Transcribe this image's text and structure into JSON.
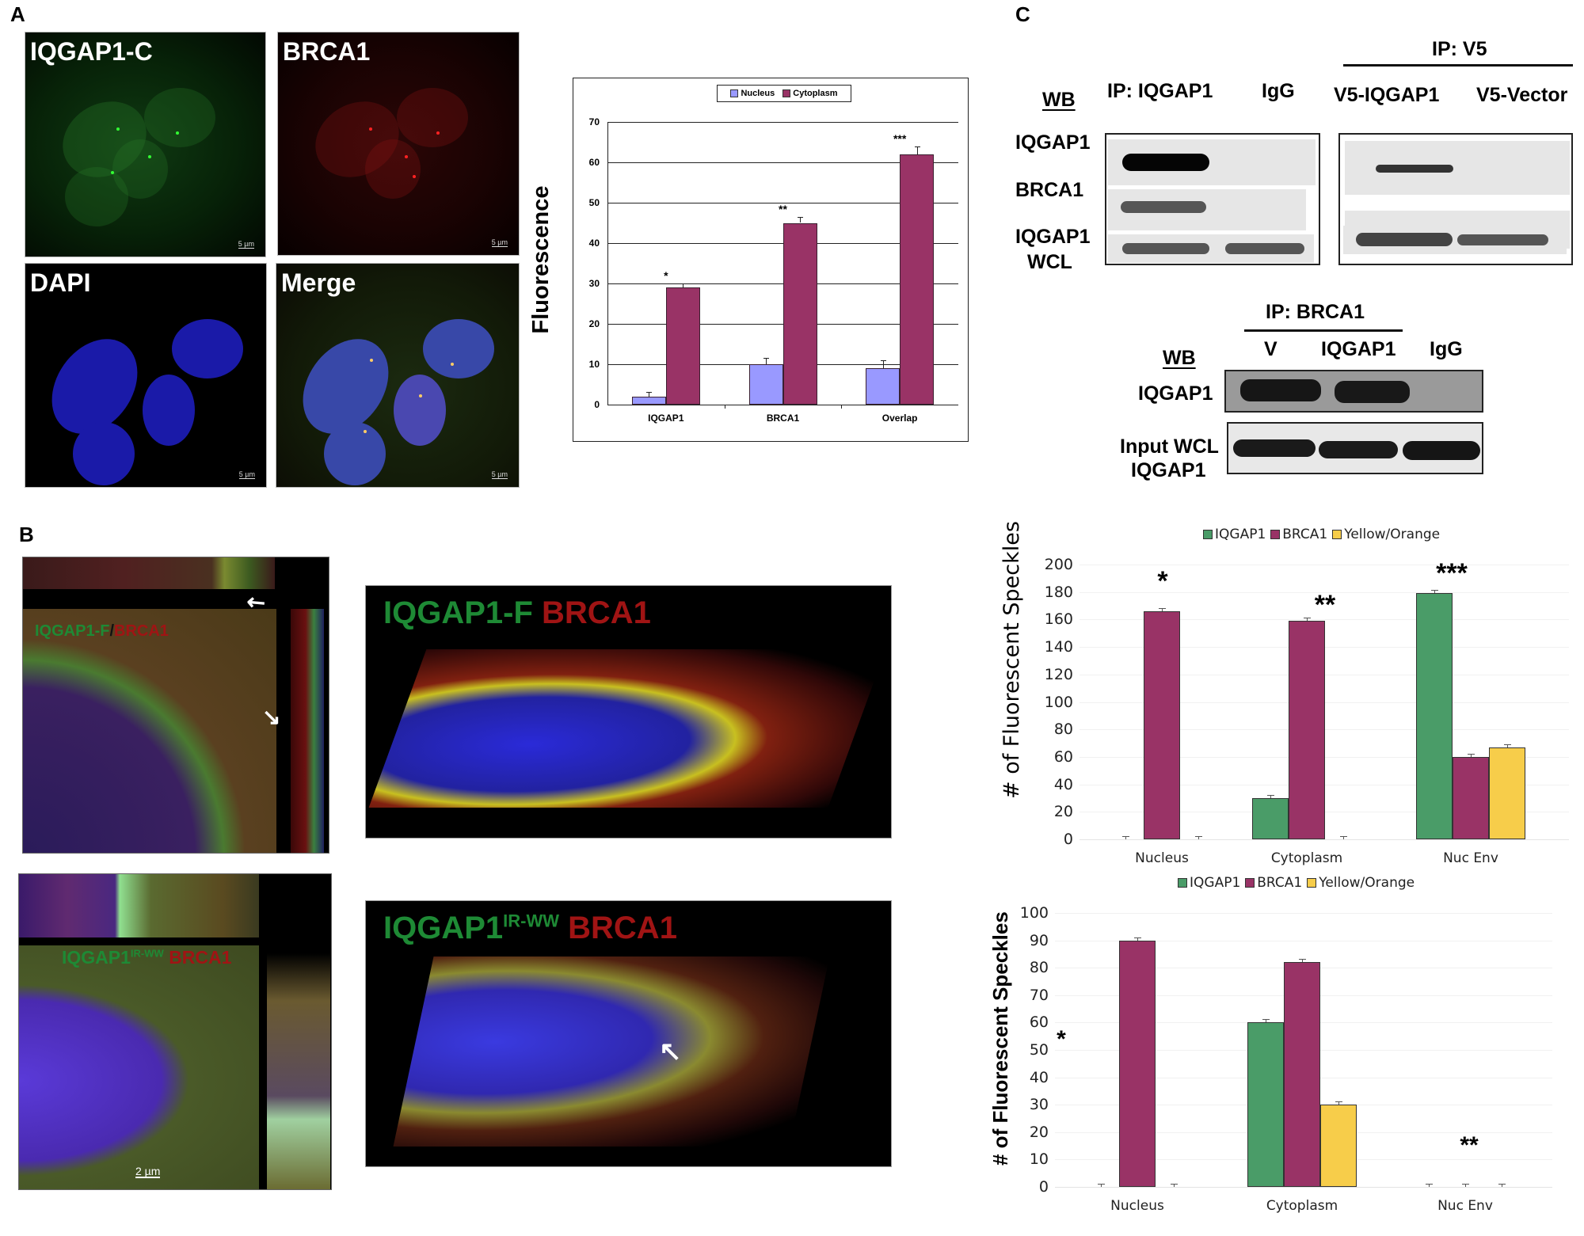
{
  "panels": {
    "A": {
      "letter": "A",
      "images": [
        {
          "label": "IQGAP1-C",
          "scale_bar": "5 µm",
          "channel": "green"
        },
        {
          "label": "BRCA1",
          "scale_bar": "5 µm",
          "channel": "red"
        },
        {
          "label": "DAPI",
          "scale_bar": "5 µm",
          "channel": "blue"
        },
        {
          "label": "Merge",
          "scale_bar": "5 µm",
          "channel": "merge"
        }
      ]
    },
    "B": {
      "letter": "B",
      "images": [
        {
          "label_green": "IQGAP1-F",
          "label_sep": "/",
          "label_red": "BRCA1",
          "arrows": 2
        },
        {
          "label_green": "IQGAP1-F",
          "label_red": "BRCA1",
          "view": "3D"
        },
        {
          "label_green": "IQGAP1",
          "label_sup": "IR-WW",
          "label_red": "BRCA1",
          "scale_bar": "2 µm"
        },
        {
          "label_green": "IQGAP1",
          "label_sup": "IR-WW",
          "label_red": "BRCA1",
          "view": "3D",
          "arrows": 1
        }
      ]
    },
    "C": {
      "letter": "C",
      "blot1": {
        "wb_label": "WB",
        "columns": [
          "IP: IQGAP1",
          "IgG"
        ],
        "rows": [
          "IQGAP1",
          "BRCA1",
          "IQGAP1",
          "WCL"
        ]
      },
      "blot2": {
        "header": "IP: V5",
        "columns": [
          "V5-IQGAP1",
          "V5-Vector"
        ]
      },
      "blot3": {
        "header": "IP: BRCA1",
        "wb_label": "WB",
        "columns": [
          "V",
          "IQGAP1",
          "IgG"
        ],
        "rows": [
          "IQGAP1",
          "Input WCL",
          "IQGAP1"
        ]
      }
    }
  },
  "colors": {
    "nucleus_bar": "#9999ff",
    "cytoplasm_bar": "#993366",
    "iqgap1_bar": "#4a9c68",
    "brca1_bar": "#993366",
    "yellow_bar": "#f7cd4a"
  },
  "chart_data": [
    {
      "id": "A-fluorescence",
      "type": "bar",
      "title": "",
      "xlabel": "",
      "ylabel": "Fluorescence",
      "categories": [
        "IQGAP1",
        "BRCA1",
        "Overlap"
      ],
      "series": [
        {
          "name": "Nucleus",
          "values": [
            2,
            10,
            9
          ],
          "errors": [
            1.2,
            1.5,
            2
          ]
        },
        {
          "name": "Cytoplasm",
          "values": [
            29,
            45,
            62
          ],
          "errors": [
            1,
            1.5,
            2
          ]
        }
      ],
      "significance": [
        "*",
        "**",
        "***"
      ],
      "ylim": [
        0,
        70
      ],
      "yticks": [
        0,
        10,
        20,
        30,
        40,
        50,
        60,
        70
      ],
      "grid": true,
      "legend_position": "top"
    },
    {
      "id": "B-speckles-IQGAP1-F",
      "type": "bar",
      "title": "",
      "xlabel": "",
      "ylabel": "# of Fluorescent Speckles",
      "categories": [
        "Nucleus",
        "Cytoplasm",
        "Nuc Env"
      ],
      "series": [
        {
          "name": "IQGAP1",
          "values": [
            0,
            30,
            179
          ]
        },
        {
          "name": "BRCA1",
          "values": [
            166,
            159,
            60
          ]
        },
        {
          "name": "Yellow/Orange",
          "values": [
            0,
            0,
            67
          ]
        }
      ],
      "significance": [
        "*",
        "**",
        "***"
      ],
      "ylim": [
        0,
        200
      ],
      "yticks": [
        0,
        20,
        40,
        60,
        80,
        100,
        120,
        140,
        160,
        180,
        200
      ],
      "grid": true,
      "legend_position": "top"
    },
    {
      "id": "B-speckles-IQGAP1-IR-WW",
      "type": "bar",
      "title": "",
      "xlabel": "",
      "ylabel": "# of Fluorescent Speckles",
      "categories": [
        "Nucleus",
        "Cytoplasm",
        "Nuc Env"
      ],
      "series": [
        {
          "name": "IQGAP1",
          "values": [
            0,
            60,
            0
          ]
        },
        {
          "name": "BRCA1",
          "values": [
            90,
            82,
            0
          ]
        },
        {
          "name": "Yellow/Orange",
          "values": [
            0,
            30,
            0
          ]
        }
      ],
      "annotations": [
        "*",
        "**"
      ],
      "ylim": [
        0,
        100
      ],
      "yticks": [
        0,
        10,
        20,
        30,
        40,
        50,
        60,
        70,
        80,
        90,
        100
      ],
      "grid": true,
      "legend_position": "top"
    }
  ]
}
